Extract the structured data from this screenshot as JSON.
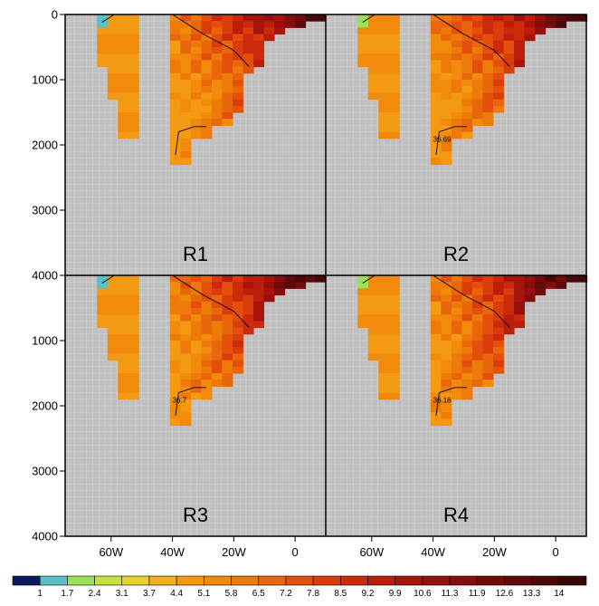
{
  "chart_data": {
    "type": "heatmap",
    "layout": "2x2 panels sharing axes",
    "background_color": "#c0c0c0",
    "grid": true,
    "xaxis": {
      "range": [
        -75,
        10
      ],
      "ticks": [
        {
          "value": -60,
          "label": "60W"
        },
        {
          "value": -40,
          "label": "40W"
        },
        {
          "value": -20,
          "label": "20W"
        },
        {
          "value": 0,
          "label": "0"
        }
      ]
    },
    "yaxis": {
      "range": [
        0,
        4000
      ],
      "reversed": true,
      "ticks": [
        {
          "value": 0,
          "label": "0"
        },
        {
          "value": 1000,
          "label": "1000"
        },
        {
          "value": 2000,
          "label": "2000"
        },
        {
          "value": 3000,
          "label": "3000"
        },
        {
          "value": 4000,
          "label": "4000"
        }
      ]
    },
    "panels": [
      {
        "label": "R1",
        "contour_label": ""
      },
      {
        "label": "R2",
        "contour_label": "36.69"
      },
      {
        "label": "R3",
        "contour_label": "36.7"
      },
      {
        "label": "R4",
        "contour_label": "36.18"
      }
    ],
    "colorbar": {
      "labels": [
        "1",
        "1.7",
        "2.4",
        "3.1",
        "3.7",
        "4.4",
        "5.1",
        "5.8",
        "6.5",
        "7.2",
        "7.8",
        "8.5",
        "9.2",
        "9.9",
        "10.6",
        "11.3",
        "11.9",
        "12.6",
        "13.3",
        "14"
      ],
      "colors": [
        "#0a1a5c",
        "#5bbfc9",
        "#9be05a",
        "#c8e03c",
        "#e6d22a",
        "#f0b21e",
        "#f39a12",
        "#f28a0c",
        "#ee7a0a",
        "#ea660a",
        "#e4500c",
        "#da3c0c",
        "#cc2a0c",
        "#bc1e0c",
        "#a8140c",
        "#961010",
        "#840e0e",
        "#700c0c",
        "#5e0a0a",
        "#4a0808",
        "#380606"
      ]
    }
  }
}
